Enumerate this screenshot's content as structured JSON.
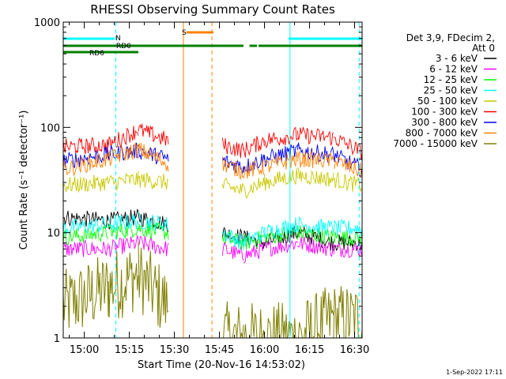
{
  "chart_data": {
    "type": "line",
    "title": "RHESSI Observing Summary Count Rates",
    "xlabel": "Start Time (20-Nov-16 14:53:02)",
    "ylabel": "Count Rate (s⁻¹ detector⁻¹)",
    "xlim_minutes_after_1453": [
      0,
      99.5
    ],
    "ylim": [
      1,
      1000
    ],
    "yscale": "log",
    "x_ticks": [
      "15:00",
      "15:15",
      "15:30",
      "15:45",
      "16:00",
      "16:15",
      "16:30"
    ],
    "y_ticks": [
      "1",
      "10",
      "100",
      "1000"
    ],
    "legend": {
      "placement": "right-outside",
      "header": [
        "Det 3,9, FDecim 2,",
        "Att 0"
      ],
      "entries": [
        {
          "label": "3 - 6 keV",
          "color": "#000000"
        },
        {
          "label": "6 - 12 keV",
          "color": "#ff00ff"
        },
        {
          "label": "12 - 25 keV",
          "color": "#00ff00"
        },
        {
          "label": "25 - 50 keV",
          "color": "#00ffff"
        },
        {
          "label": "50 - 100 keV",
          "color": "#c8c800"
        },
        {
          "label": "100 - 300 keV",
          "color": "#ff0000"
        },
        {
          "label": "300 - 800 keV",
          "color": "#0000ff"
        },
        {
          "label": "800 - 7000 keV",
          "color": "#ff8000"
        },
        {
          "label": "7000 - 15000 keV",
          "color": "#808000"
        }
      ]
    },
    "flag_labels": {
      "N": "N",
      "RD0": "RD0",
      "RD6": "RD6",
      "S": "S"
    },
    "series_profile": {
      "x": [
        0,
        15,
        25,
        35,
        38,
        53,
        60,
        67,
        78,
        90,
        99.5
      ],
      "names": [
        "3 - 6 keV",
        "6 - 12 keV",
        "12 - 25 keV",
        "25 - 50 keV",
        "50 - 100 keV",
        "100 - 300 keV",
        "300 - 800 keV",
        "800 - 7000 keV",
        "7000 - 15000 keV"
      ],
      "values": [
        [
          14,
          13,
          14,
          12,
          null,
          10,
          9,
          8,
          10,
          8,
          8
        ],
        [
          7,
          7,
          8,
          7,
          null,
          7,
          6,
          7,
          8,
          7,
          7
        ],
        [
          9,
          10,
          11,
          10,
          null,
          9,
          8,
          9,
          10,
          9,
          9
        ],
        [
          11,
          12,
          13,
          12,
          null,
          10,
          8,
          10,
          12,
          11,
          11
        ],
        [
          28,
          30,
          32,
          30,
          null,
          28,
          25,
          30,
          35,
          32,
          28
        ],
        [
          65,
          68,
          95,
          75,
          null,
          68,
          60,
          75,
          85,
          80,
          58
        ],
        [
          48,
          55,
          60,
          50,
          null,
          48,
          42,
          50,
          60,
          55,
          40
        ],
        [
          40,
          50,
          62,
          45,
          null,
          45,
          38,
          42,
          50,
          48,
          38
        ],
        [
          2,
          3,
          4,
          2,
          null,
          1,
          1,
          1,
          1,
          1.5,
          1.5
        ]
      ]
    },
    "flag_bars": [
      {
        "name": "N",
        "color": "#00ffff",
        "intervals": [
          [
            0,
            17
          ],
          [
            75,
            99.5
          ]
        ]
      },
      {
        "name": "RD0",
        "color": "#008000",
        "intervals": [
          [
            0,
            60
          ],
          [
            62,
            64.5
          ],
          [
            65,
            99.5
          ]
        ]
      },
      {
        "name": "RD6",
        "color": "#008000",
        "intervals": [
          [
            0,
            25
          ]
        ]
      },
      {
        "name": "S",
        "color": "#ff8000",
        "intervals": [
          [
            41,
            50
          ]
        ]
      }
    ],
    "vertical_markers": [
      {
        "minute": 17.5,
        "color": "#00ffff",
        "style": "dashed"
      },
      {
        "minute": 75.5,
        "color": "#00ffff",
        "style": "solid"
      },
      {
        "minute": 98.5,
        "color": "#00ffff",
        "style": "dashed"
      },
      {
        "minute": 40,
        "color": "#ff8000",
        "style": "solid"
      },
      {
        "minute": 49.5,
        "color": "#ff8000",
        "style": "dashed"
      }
    ]
  },
  "footer": {
    "timestamp": "1-Sep-2022 17:11"
  }
}
